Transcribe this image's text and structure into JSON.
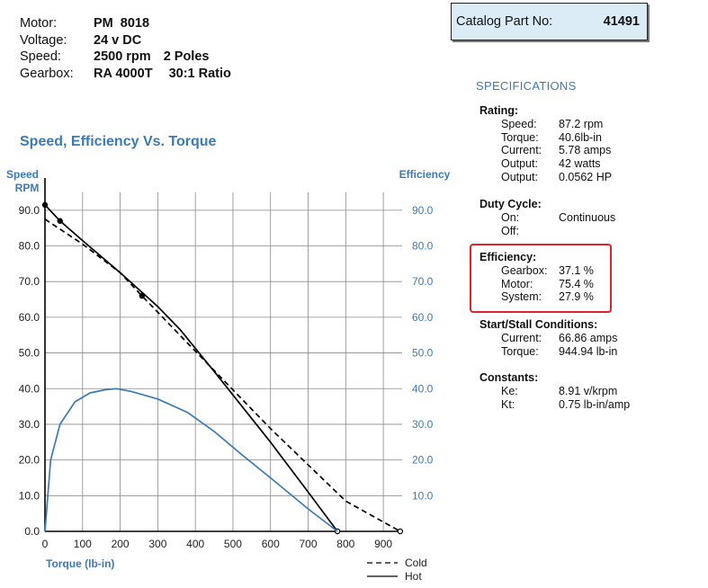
{
  "motor": {
    "rows": [
      {
        "label": "Motor:",
        "value": "PM  8018",
        "value2": ""
      },
      {
        "label": "Voltage:",
        "value": "24 v DC",
        "value2": ""
      },
      {
        "label": "Speed:",
        "value": "2500 rpm",
        "value2": "2 Poles"
      },
      {
        "label": "Gearbox:",
        "value": "RA 4000T",
        "value2": "30:1 Ratio"
      }
    ]
  },
  "catalog": {
    "label": "Catalog Part No:",
    "number": "41491"
  },
  "specifications": {
    "title": "SPECIFICATIONS",
    "rating": {
      "header": "Rating:",
      "rows": [
        {
          "k": "Speed:",
          "v": "87.2 rpm"
        },
        {
          "k": "Torque:",
          "v": "40.6lb-in"
        },
        {
          "k": "Current:",
          "v": "5.78 amps"
        },
        {
          "k": "Output:",
          "v": "42 watts"
        },
        {
          "k": "Output:",
          "v": "0.0562 HP"
        }
      ]
    },
    "duty": {
      "header": "Duty Cycle:",
      "rows": [
        {
          "k": "On:",
          "v": "Continuous"
        },
        {
          "k": "Off:",
          "v": ""
        }
      ]
    },
    "efficiency": {
      "header": "Efficiency:",
      "rows": [
        {
          "k": "Gearbox:",
          "v": "37.1 %"
        },
        {
          "k": "Motor:",
          "v": "75.4 %"
        },
        {
          "k": "System:",
          "v": "27.9 %"
        }
      ]
    },
    "startstall": {
      "header": "Start/Stall Conditions:",
      "rows": [
        {
          "k": "Current:",
          "v": "66.86 amps"
        },
        {
          "k": "Torque:",
          "v": "944.94 lb-in"
        }
      ]
    },
    "constants": {
      "header": "Constants:",
      "rows": [
        {
          "k": "Ke:",
          "v": "8.91 v/krpm"
        },
        {
          "k": "Kt:",
          "v": "0.75 lb-in/amp"
        }
      ]
    }
  },
  "colors": {
    "accent": "#3c7ab6",
    "highlight": "#e0232b",
    "catalog_bg": "#dcecf6",
    "grid": "#8a8a8a"
  },
  "chart_data": {
    "type": "line",
    "title": "Speed, Efficiency Vs. Torque",
    "xlabel": "Torque  (lb-in)",
    "ylabel_left": "Speed RPM",
    "ylabel_left_lines": [
      "Speed",
      "RPM"
    ],
    "ylabel_right": "Efficiency",
    "xlim": [
      0,
      950
    ],
    "ylim": [
      0,
      95
    ],
    "x_ticks": [
      "0",
      "100",
      "200",
      "300",
      "400",
      "500",
      "600",
      "700",
      "800",
      "900"
    ],
    "y_ticks": [
      "0.0",
      "10.0",
      "20.0",
      "30.0",
      "40.0",
      "50.0",
      "60.0",
      "70.0",
      "80.0",
      "90.0"
    ],
    "grid": true,
    "legend": {
      "position": "bottom-right",
      "cold": "Cold",
      "hot": "Hot"
    },
    "series": [
      {
        "name": "Speed Cold",
        "style": "dashed",
        "color": "#000000",
        "points": [
          [
            0,
            87.5
          ],
          [
            100,
            80.5
          ],
          [
            200,
            72.5
          ],
          [
            258,
            66
          ],
          [
            400,
            50.5
          ],
          [
            600,
            28.8
          ],
          [
            800,
            8.5
          ],
          [
            944.9,
            0
          ]
        ],
        "markers": [
          [
            258,
            66
          ],
          [
            944.9,
            0
          ]
        ]
      },
      {
        "name": "Speed Hot",
        "style": "solid",
        "color": "#000000",
        "points": [
          [
            0,
            91.5
          ],
          [
            40,
            87
          ],
          [
            100,
            81.5
          ],
          [
            200,
            72.5
          ],
          [
            300,
            63
          ],
          [
            360,
            56.5
          ],
          [
            450,
            44.8
          ],
          [
            600,
            25
          ],
          [
            700,
            11
          ],
          [
            778,
            0
          ]
        ],
        "markers": [
          [
            0,
            91.5
          ],
          [
            40,
            87
          ],
          [
            778,
            0
          ]
        ]
      },
      {
        "name": "Efficiency Hot",
        "style": "solid",
        "color": "#3c7ab6",
        "points": [
          [
            0,
            0
          ],
          [
            15,
            20
          ],
          [
            40,
            30
          ],
          [
            80,
            36.3
          ],
          [
            120,
            38.8
          ],
          [
            160,
            39.7
          ],
          [
            190,
            40
          ],
          [
            230,
            39.2
          ],
          [
            300,
            37.1
          ],
          [
            380,
            33.3
          ],
          [
            450,
            28
          ],
          [
            520,
            21.8
          ],
          [
            600,
            15
          ],
          [
            700,
            6.3
          ],
          [
            778,
            0
          ]
        ],
        "markers": []
      }
    ]
  }
}
